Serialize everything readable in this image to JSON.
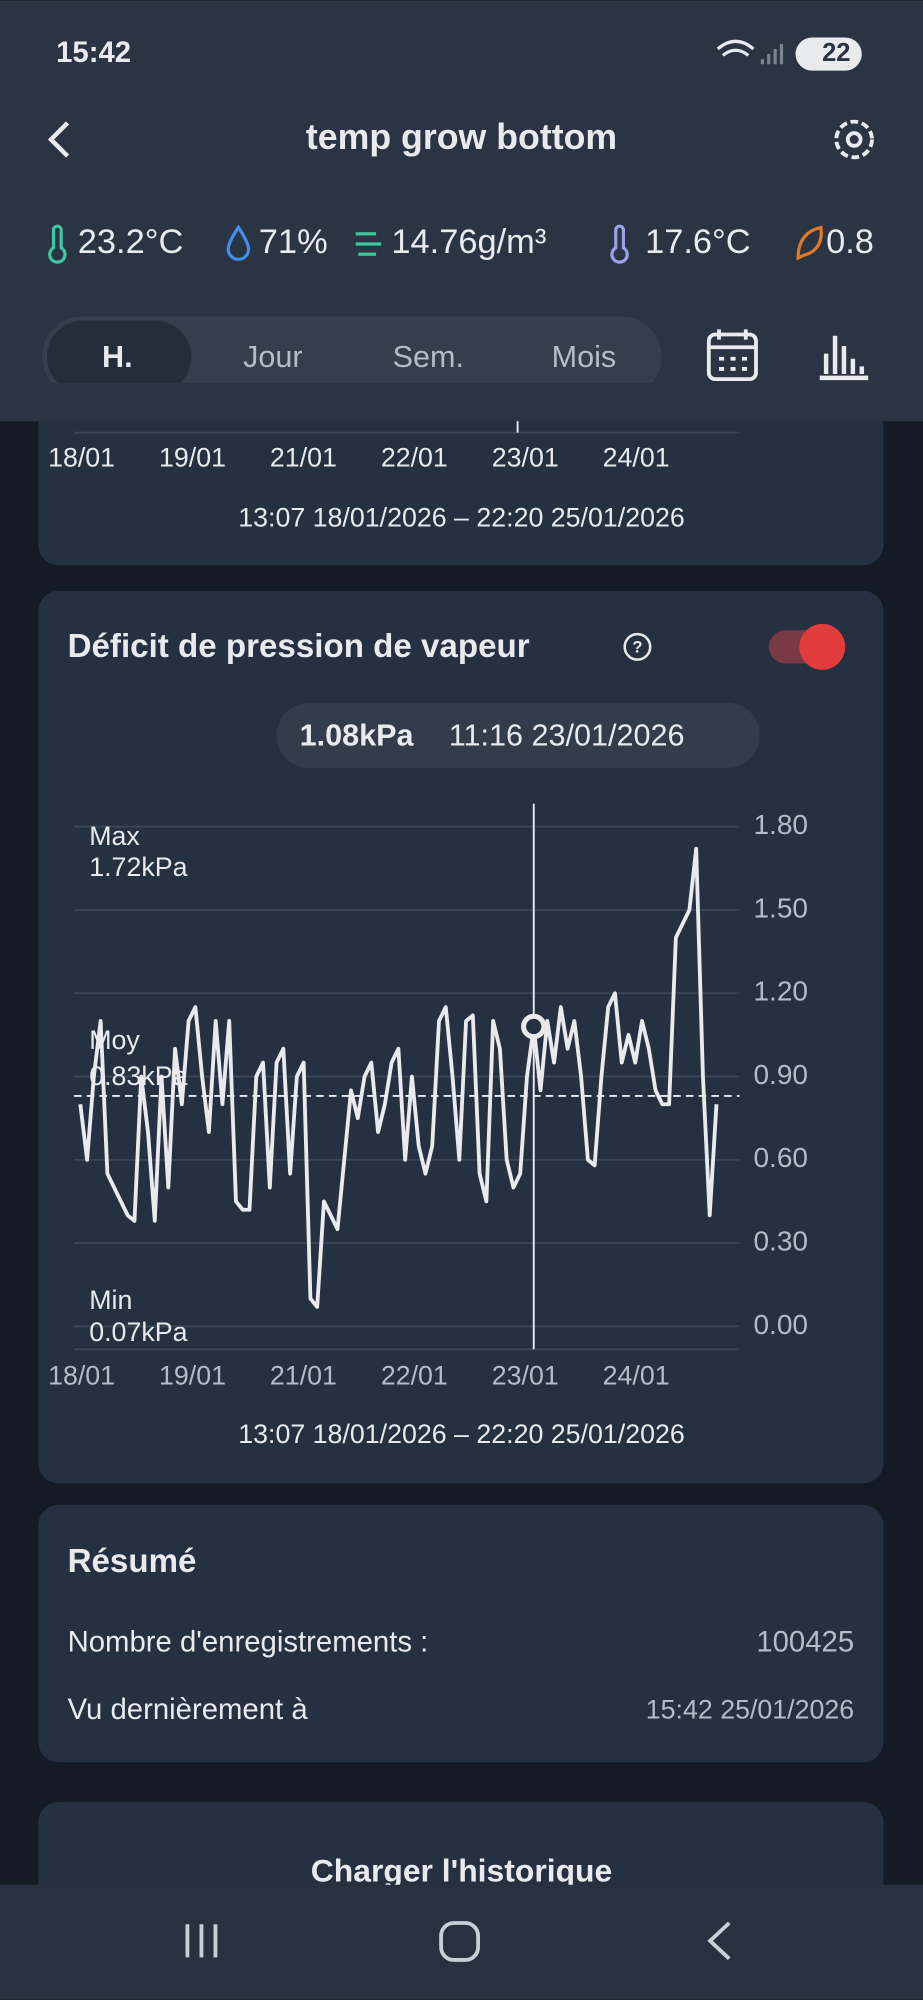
{
  "status_bar": {
    "time": "15:42",
    "battery": "22"
  },
  "header": {
    "title": "temp grow bottom"
  },
  "readings": [
    "23.2°C",
    "71%",
    "14.76g/m³",
    "17.6°C",
    "0.8"
  ],
  "tabs": [
    "H.",
    "Jour",
    "Sem.",
    "Mois"
  ],
  "top_card": {
    "x_labels": [
      "18/01",
      "19/01",
      "21/01",
      "22/01",
      "23/01",
      "24/01"
    ],
    "range": "13:07 18/01/2026 – 22:20 25/01/2026"
  },
  "chart_data": {
    "type": "line",
    "title": "Déficit de pression de vapeur",
    "tooltip": {
      "value": "1.08kPa",
      "time": "11:16 23/01/2026"
    },
    "highlight_index": 67,
    "x_labels": [
      "18/01",
      "19/01",
      "21/01",
      "22/01",
      "23/01",
      "24/01"
    ],
    "values": [
      0.8,
      0.6,
      0.9,
      1.1,
      0.55,
      0.5,
      0.45,
      0.4,
      0.38,
      0.9,
      0.7,
      0.38,
      0.9,
      0.5,
      1.0,
      0.8,
      1.1,
      1.15,
      0.9,
      0.7,
      1.1,
      0.8,
      1.1,
      0.45,
      0.42,
      0.42,
      0.9,
      0.95,
      0.5,
      0.95,
      1.0,
      0.55,
      0.9,
      0.95,
      0.1,
      0.07,
      0.45,
      0.4,
      0.35,
      0.6,
      0.85,
      0.75,
      0.9,
      0.95,
      0.7,
      0.8,
      0.95,
      1.0,
      0.6,
      0.9,
      0.65,
      0.55,
      0.65,
      1.1,
      1.15,
      0.9,
      0.6,
      1.1,
      1.12,
      0.55,
      0.45,
      1.1,
      1.0,
      0.6,
      0.5,
      0.55,
      0.9,
      1.08,
      0.85,
      1.1,
      0.95,
      1.15,
      1.0,
      1.1,
      0.9,
      0.6,
      0.58,
      0.9,
      1.15,
      1.2,
      0.95,
      1.05,
      0.95,
      1.1,
      1.0,
      0.85,
      0.8,
      0.8,
      1.4,
      1.45,
      1.5,
      1.72,
      0.9,
      0.4,
      0.8
    ],
    "color": "#e8eaed",
    "ylim": [
      0,
      1.8
    ],
    "yticks": [
      {
        "value": 0,
        "label": "0.00"
      },
      {
        "value": 0.3,
        "label": "0.30"
      },
      {
        "value": 0.6,
        "label": "0.60"
      },
      {
        "value": 0.9,
        "label": "0.90"
      },
      {
        "value": 1.2,
        "label": "1.20"
      },
      {
        "value": 1.5,
        "label": "1.50"
      },
      {
        "value": 1.8,
        "label": "1.80"
      }
    ],
    "grid": true,
    "average": 0.83,
    "annotations": [
      {
        "label": "Max",
        "value_label": "1.72kPa"
      },
      {
        "label": "Moy",
        "value_label": "0.83kPa"
      },
      {
        "label": "Min",
        "value_label": "0.07kPa"
      }
    ],
    "range": "13:07 18/01/2026 – 22:20 25/01/2026"
  },
  "summary": {
    "title": "Résumé",
    "rows": [
      [
        "Nombre d'enregistrements :",
        "100425"
      ],
      [
        "Vu dernièrement à",
        "15:42 25/01/2026"
      ]
    ]
  },
  "button": "Charger l'historique"
}
